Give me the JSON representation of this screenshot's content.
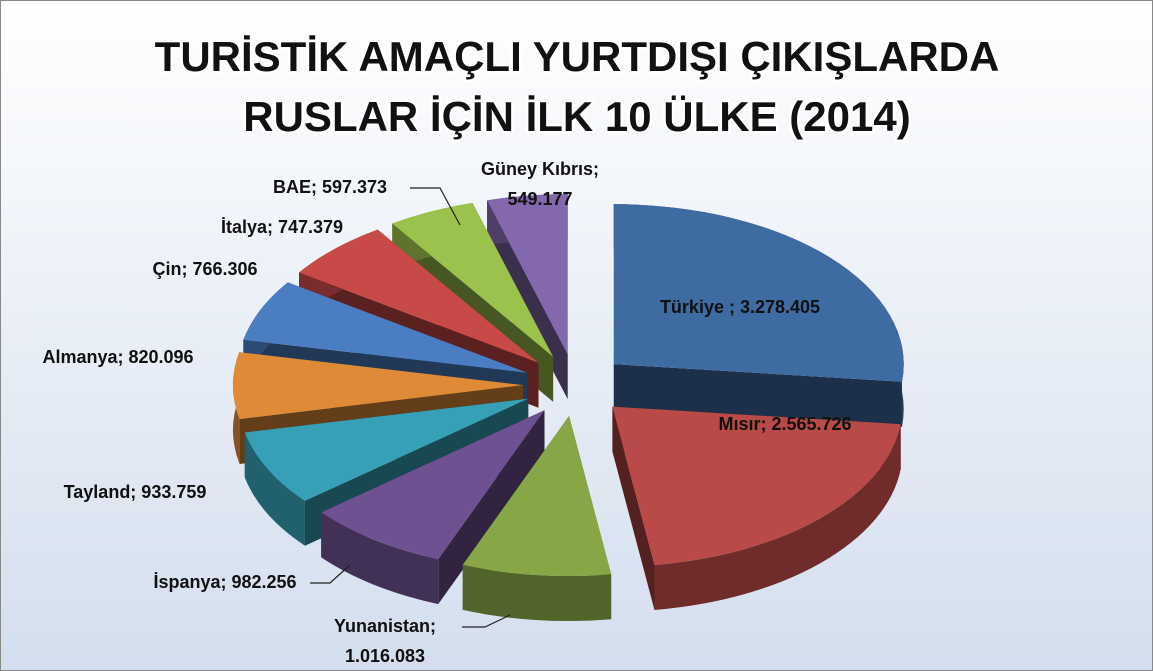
{
  "chart_data": {
    "type": "pie",
    "title": [
      "TURİSTİK AMAÇLI YURTDIŞI ÇIKIŞLARDA",
      "RUSLAR İÇİN İLK 10 ÜLKE (2014)"
    ],
    "values": [
      3278405,
      2565726,
      1016083,
      982256,
      933759,
      820096,
      766306,
      747379,
      597373,
      549177
    ],
    "value_labels": [
      "Türkiye ; 3.278.405",
      "Mısır; 2.565.726",
      "Yunanistan;\n1.016.083",
      "İspanya; 982.256",
      "Tayland; 933.759",
      "Almanya; 820.096",
      "Çin; 766.306",
      "İtalya; 747.379",
      "BAE; 597.373",
      "Güney Kıbrıs;\n549.177"
    ],
    "colors": [
      "#3f6ba3",
      "#b94a47",
      "#87a746",
      "#6e5190",
      "#36a1b6",
      "#df8a36",
      "#4a7dc2",
      "#c84a48",
      "#9bc24c",
      "#8468ad"
    ]
  }
}
